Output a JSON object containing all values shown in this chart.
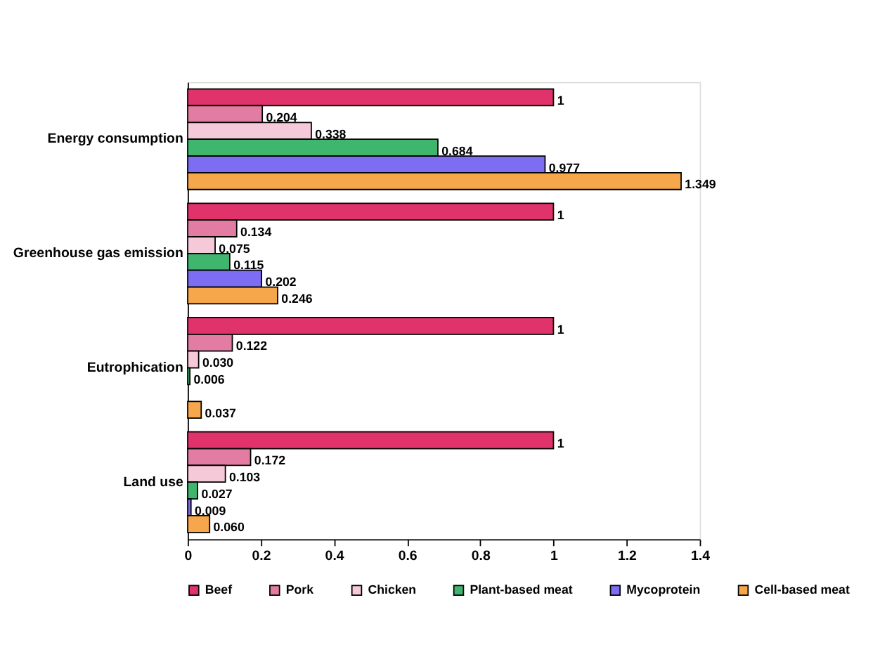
{
  "chart_data": {
    "type": "bar",
    "orientation": "horizontal",
    "categories": [
      "Energy consumption",
      "Greenhouse gas emission",
      "Eutrophication",
      "Land use"
    ],
    "series": [
      {
        "name": "Beef",
        "color": "#e0336c",
        "values": [
          1,
          1,
          1,
          1
        ],
        "value_labels": [
          "1",
          "1",
          "1",
          "1"
        ]
      },
      {
        "name": "Pork",
        "color": "#e27ca3",
        "values": [
          0.204,
          0.134,
          0.122,
          0.172
        ],
        "value_labels": [
          "0.204",
          "0.134",
          "0.122",
          "0.172"
        ]
      },
      {
        "name": "Chicken",
        "color": "#f6c9d9",
        "values": [
          0.338,
          0.075,
          0.03,
          0.103
        ],
        "value_labels": [
          "0.338",
          "0.075",
          "0.030",
          "0.103"
        ]
      },
      {
        "name": "Plant-based meat",
        "color": "#3fb56e",
        "values": [
          0.684,
          0.115,
          0.006,
          0.027
        ],
        "value_labels": [
          "0.684",
          "0.115",
          "0.006",
          "0.027"
        ]
      },
      {
        "name": "Mycoprotein",
        "color": "#7d6df2",
        "values": [
          0.977,
          0.202,
          null,
          0.009
        ],
        "value_labels": [
          "0.977",
          "0.202",
          null,
          "0.009"
        ]
      },
      {
        "name": "Cell-based meat",
        "color": "#f6a64b",
        "values": [
          1.349,
          0.246,
          0.037,
          0.06
        ],
        "value_labels": [
          "1.349",
          "0.246",
          "0.037",
          "0.060"
        ]
      }
    ],
    "xlim": [
      0,
      1.4
    ],
    "xticks": [
      0,
      0.2,
      0.4,
      0.6,
      0.8,
      1,
      1.2,
      1.4
    ],
    "grid": false,
    "legend": "bottom"
  }
}
